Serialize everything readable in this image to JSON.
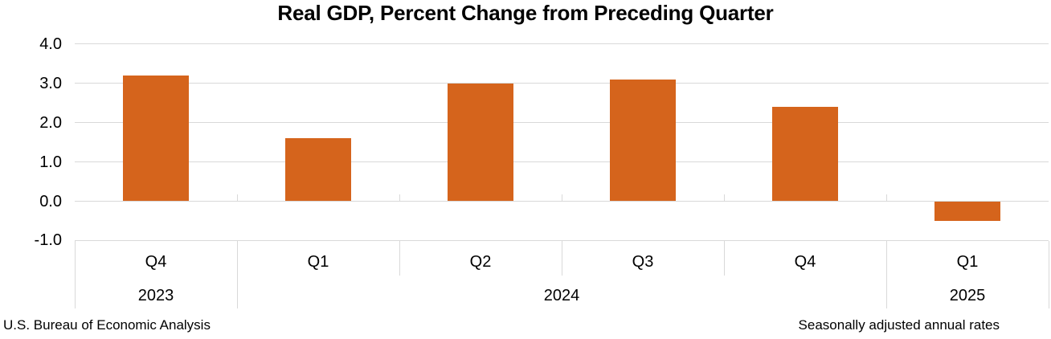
{
  "chart_data": {
    "type": "bar",
    "title": "Real GDP, Percent Change from Preceding Quarter",
    "categories": [
      "Q4 2023",
      "Q1 2024",
      "Q2 2024",
      "Q3 2024",
      "Q4 2024",
      "Q1 2025"
    ],
    "values": [
      3.2,
      1.6,
      3.0,
      3.1,
      2.4,
      -0.5
    ],
    "quarter_labels": [
      "Q4",
      "Q1",
      "Q2",
      "Q3",
      "Q4",
      "Q1"
    ],
    "year_groups": [
      {
        "label": "2023",
        "span": 1
      },
      {
        "label": "2024",
        "span": 4
      },
      {
        "label": "2025",
        "span": 1
      }
    ],
    "yticks": [
      4.0,
      3.0,
      2.0,
      1.0,
      0.0,
      -1.0
    ],
    "ytick_labels": [
      "4.0",
      "3.0",
      "2.0",
      "1.0",
      "0.0",
      "-1.0"
    ],
    "ylim": [
      -1.0,
      4.0
    ],
    "xlabel": "",
    "ylabel": "",
    "grid": true,
    "legend": "none",
    "bar_color": "#D5641C",
    "gridline_color": "#D9D9D9",
    "text_color": "#000000"
  },
  "footer": {
    "source": "U.S. Bureau of Economic Analysis",
    "note": "Seasonally adjusted annual rates"
  }
}
